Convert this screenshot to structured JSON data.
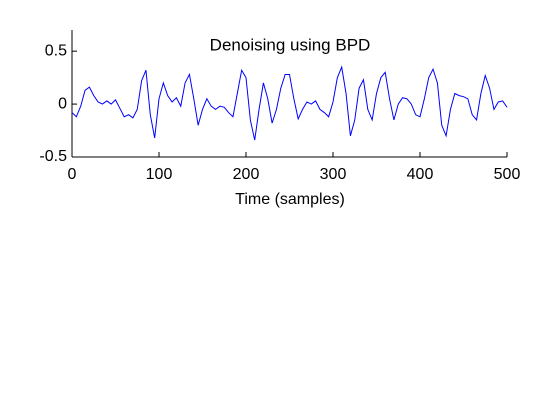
{
  "chart_data": {
    "type": "line",
    "title": "Denoising using BPD",
    "xlabel": "Time (samples)",
    "x": [
      0,
      5,
      10,
      15,
      20,
      25,
      30,
      35,
      40,
      45,
      50,
      55,
      60,
      65,
      70,
      75,
      80,
      85,
      90,
      95,
      100,
      105,
      110,
      115,
      120,
      125,
      130,
      135,
      140,
      145,
      150,
      155,
      160,
      165,
      170,
      175,
      180,
      185,
      190,
      195,
      200,
      205,
      210,
      215,
      220,
      225,
      230,
      235,
      240,
      245,
      250,
      255,
      260,
      265,
      270,
      275,
      280,
      285,
      290,
      295,
      300,
      305,
      310,
      315,
      320,
      325,
      330,
      335,
      340,
      345,
      350,
      355,
      360,
      365,
      370,
      375,
      380,
      385,
      390,
      395,
      400,
      405,
      410,
      415,
      420,
      425,
      430,
      435,
      440,
      445,
      450,
      455,
      460,
      465,
      470,
      475,
      480,
      485,
      490,
      495,
      500
    ],
    "series": [
      {
        "color": "#0000ff",
        "values": [
          -0.08,
          -0.12,
          -0.02,
          0.13,
          0.16,
          0.08,
          0.02,
          0.0,
          0.03,
          0.0,
          0.04,
          -0.04,
          -0.12,
          -0.1,
          -0.13,
          -0.05,
          0.22,
          0.32,
          -0.1,
          -0.32,
          0.05,
          0.2,
          0.08,
          0.02,
          0.06,
          -0.02,
          0.2,
          0.28,
          0.05,
          -0.2,
          -0.05,
          0.05,
          -0.02,
          -0.05,
          -0.02,
          -0.03,
          -0.08,
          -0.12,
          0.1,
          0.32,
          0.25,
          -0.15,
          -0.34,
          -0.05,
          0.2,
          0.05,
          -0.18,
          -0.05,
          0.15,
          0.28,
          0.28,
          0.05,
          -0.14,
          -0.05,
          0.02,
          0.0,
          0.03,
          -0.05,
          -0.08,
          -0.12,
          0.02,
          0.25,
          0.35,
          0.1,
          -0.3,
          -0.15,
          0.15,
          0.23,
          -0.05,
          -0.15,
          0.1,
          0.25,
          0.3,
          0.05,
          -0.15,
          0.0,
          0.06,
          0.05,
          0.0,
          -0.1,
          -0.12,
          0.05,
          0.25,
          0.33,
          0.2,
          -0.2,
          -0.3,
          -0.05,
          0.1,
          0.08,
          0.07,
          0.05,
          -0.1,
          -0.15,
          0.1,
          0.27,
          0.15,
          -0.05,
          0.02,
          0.03,
          -0.03
        ]
      }
    ],
    "xlim": [
      0,
      500
    ],
    "ylim": [
      -0.5,
      0.7
    ],
    "xticks": [
      0,
      100,
      200,
      300,
      400,
      500
    ],
    "yticks": [
      -0.5,
      0,
      0.5
    ]
  }
}
